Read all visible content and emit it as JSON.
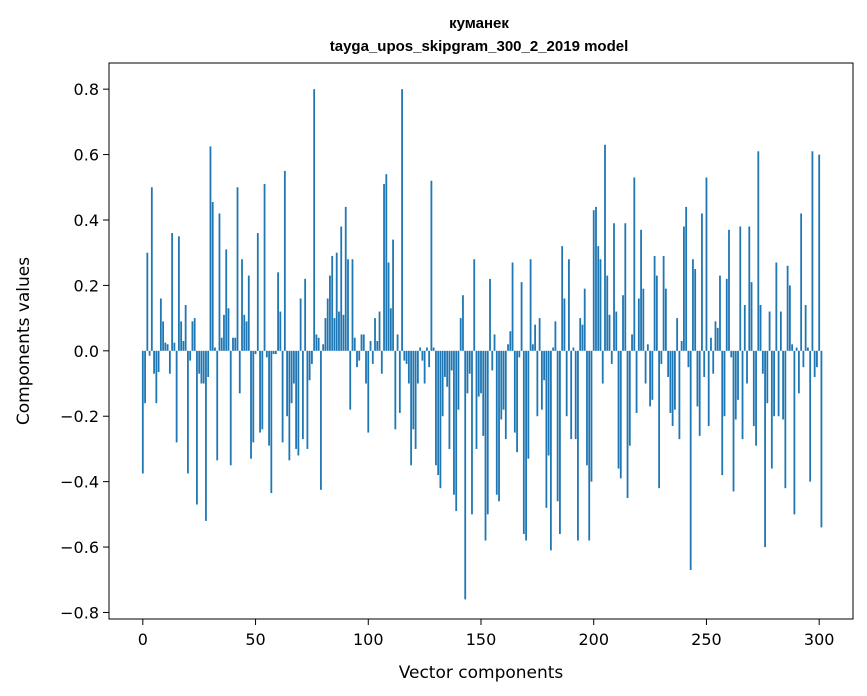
{
  "chart_data": {
    "type": "bar",
    "title_line1": "куманек",
    "title_line2": "tayga_upos_skipgram_300_2_2019 model",
    "xlabel": "Vector components",
    "ylabel": "Components values",
    "xlim": [
      -15,
      315
    ],
    "ylim": [
      -0.82,
      0.88
    ],
    "xticks": [
      0,
      50,
      100,
      150,
      200,
      250,
      300
    ],
    "xtick_labels": [
      "0",
      "50",
      "100",
      "150",
      "200",
      "250",
      "300"
    ],
    "yticks": [
      -0.8,
      -0.6,
      -0.4,
      -0.2,
      0.0,
      0.2,
      0.4,
      0.6,
      0.8
    ],
    "ytick_labels": [
      "−0.8",
      "−0.6",
      "−0.4",
      "−0.2",
      "0.0",
      "0.2",
      "0.4",
      "0.6",
      "0.8"
    ],
    "bar_color": "#1f77b4",
    "values": [
      -0.375,
      -0.16,
      0.3,
      -0.015,
      0.5,
      -0.07,
      -0.16,
      -0.065,
      0.16,
      0.09,
      0.025,
      0.02,
      -0.07,
      0.36,
      0.025,
      -0.28,
      0.35,
      0.09,
      0.03,
      0.14,
      -0.375,
      -0.03,
      0.09,
      0.1,
      -0.47,
      -0.07,
      -0.1,
      -0.1,
      -0.52,
      -0.08,
      0.625,
      0.455,
      0.01,
      -0.335,
      0.42,
      0.04,
      0.11,
      0.31,
      0.13,
      -0.35,
      0.04,
      0.04,
      0.5,
      -0.13,
      0.28,
      0.11,
      0.09,
      0.23,
      -0.33,
      -0.28,
      -0.01,
      0.36,
      -0.25,
      -0.24,
      0.51,
      -0.02,
      -0.29,
      -0.435,
      -0.01,
      -0.01,
      0.24,
      0.12,
      -0.28,
      0.55,
      -0.2,
      -0.335,
      -0.16,
      -0.1,
      -0.3,
      -0.32,
      0.16,
      -0.27,
      0.22,
      -0.3,
      -0.09,
      -0.04,
      0.8,
      0.05,
      0.04,
      -0.425,
      0.02,
      0.1,
      0.16,
      0.23,
      0.29,
      0.1,
      0.3,
      0.12,
      0.38,
      0.11,
      0.44,
      0.28,
      -0.18,
      0.28,
      0.04,
      -0.05,
      -0.03,
      0.05,
      0.05,
      -0.1,
      -0.25,
      0.03,
      -0.04,
      0.1,
      0.03,
      0.12,
      -0.07,
      0.51,
      0.54,
      0.27,
      0.13,
      0.34,
      -0.24,
      0.05,
      -0.19,
      0.8,
      -0.03,
      -0.04,
      -0.1,
      -0.35,
      -0.24,
      -0.3,
      -0.1,
      0.01,
      -0.03,
      -0.1,
      0.01,
      -0.05,
      0.52,
      0.01,
      -0.35,
      -0.38,
      -0.42,
      -0.2,
      -0.08,
      -0.11,
      -0.3,
      -0.06,
      -0.44,
      -0.49,
      -0.18,
      0.1,
      0.17,
      -0.76,
      -0.13,
      -0.07,
      -0.5,
      0.28,
      -0.3,
      -0.14,
      -0.13,
      -0.26,
      -0.58,
      -0.5,
      0.22,
      -0.06,
      0.05,
      -0.44,
      -0.46,
      -0.21,
      -0.18,
      -0.27,
      0.02,
      0.06,
      0.27,
      -0.25,
      -0.31,
      -0.02,
      0.21,
      -0.56,
      -0.58,
      -0.33,
      0.28,
      0.02,
      0.08,
      -0.2,
      0.1,
      -0.18,
      -0.09,
      -0.48,
      -0.32,
      -0.61,
      0.01,
      0.09,
      -0.46,
      -0.56,
      0.32,
      0.16,
      -0.2,
      0.28,
      -0.27,
      0.01,
      -0.27,
      -0.58,
      0.1,
      0.08,
      0.19,
      -0.35,
      -0.58,
      -0.4,
      0.43,
      0.44,
      0.32,
      0.28,
      -0.1,
      0.63,
      0.23,
      0.11,
      -0.04,
      0.39,
      0.12,
      -0.36,
      -0.39,
      0.17,
      0.39,
      -0.45,
      -0.29,
      0.05,
      0.53,
      -0.19,
      0.16,
      0.37,
      0.19,
      -0.1,
      0.02,
      -0.17,
      -0.15,
      0.29,
      0.23,
      -0.42,
      -0.04,
      0.29,
      0.19,
      -0.08,
      -0.19,
      -0.23,
      -0.18,
      0.1,
      -0.27,
      0.03,
      0.38,
      0.44,
      -0.05,
      -0.67,
      0.28,
      0.25,
      -0.17,
      -0.26,
      0.42,
      -0.08,
      0.53,
      -0.23,
      0.04,
      -0.07,
      0.09,
      0.07,
      0.23,
      -0.38,
      -0.2,
      0.22,
      0.37,
      -0.02,
      -0.43,
      -0.21,
      -0.15,
      0.38,
      -0.27,
      0.14,
      -0.1,
      0.38,
      0.21,
      -0.23,
      -0.29,
      0.61,
      0.14,
      -0.07,
      -0.6,
      -0.16,
      0.12,
      -0.36,
      -0.2,
      0.27,
      -0.2,
      0.12,
      -0.21,
      -0.42,
      0.26,
      0.2,
      0.02,
      -0.5,
      0.01,
      -0.13,
      0.42,
      -0.05,
      0.14,
      0.01,
      -0.4,
      0.61,
      -0.08,
      -0.05,
      0.6,
      -0.54
    ]
  }
}
